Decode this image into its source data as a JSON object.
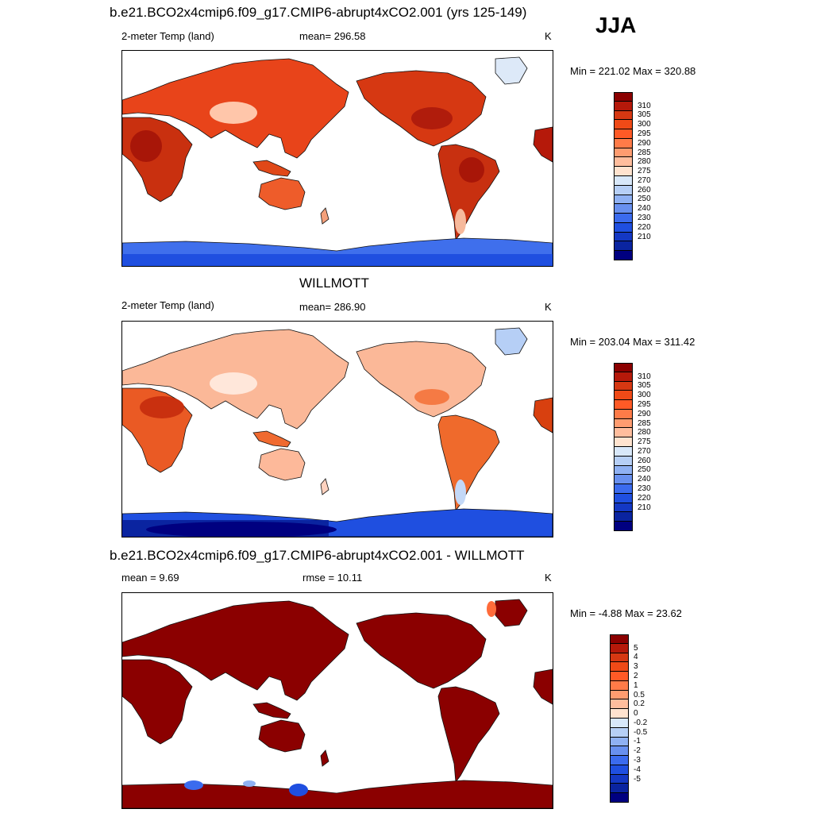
{
  "season": "JJA",
  "panels": [
    {
      "id": "model",
      "title": "b.e21.BCO2x4cmip6.f09_g17.CMIP6-abrupt4xCO2.001 (yrs 125-149)",
      "left_label": "2-meter Temp (land)",
      "center_label": "mean= 296.58",
      "units": "K",
      "minmax": "Min = 221.02 Max = 320.88",
      "colorbar": {
        "colors": [
          "#8b0000",
          "#b5190a",
          "#d63812",
          "#ef4a17",
          "#ff5a26",
          "#ff7b48",
          "#ff9c70",
          "#ffbd9d",
          "#ffe3cf",
          "#d8e8fa",
          "#b6cff6",
          "#8fb1f3",
          "#6890ef",
          "#3b6bee",
          "#1f4fe0",
          "#1438c4",
          "#0a24a0",
          "#000080"
        ],
        "ticks": [
          "310",
          "305",
          "300",
          "295",
          "290",
          "285",
          "280",
          "275",
          "270",
          "260",
          "250",
          "240",
          "230",
          "220",
          "210"
        ]
      }
    },
    {
      "id": "obs",
      "title": "WILLMOTT",
      "left_label": "2-meter Temp (land)",
      "center_label": "mean= 286.90",
      "units": "K",
      "minmax": "Min = 203.04 Max = 311.42",
      "colorbar": {
        "colors": [
          "#8b0000",
          "#b5190a",
          "#d63812",
          "#ef4a17",
          "#ff5a26",
          "#ff7b48",
          "#ff9c70",
          "#ffbd9d",
          "#ffe3cf",
          "#d8e8fa",
          "#b6cff6",
          "#8fb1f3",
          "#6890ef",
          "#3b6bee",
          "#1f4fe0",
          "#1438c4",
          "#0a24a0",
          "#000080"
        ],
        "ticks": [
          "310",
          "305",
          "300",
          "295",
          "290",
          "285",
          "280",
          "275",
          "270",
          "260",
          "250",
          "240",
          "230",
          "220",
          "210"
        ]
      }
    },
    {
      "id": "diff",
      "title": "b.e21.BCO2x4cmip6.f09_g17.CMIP6-abrupt4xCO2.001 - WILLMOTT",
      "left_label": "mean =   9.69",
      "center_label": "rmse =  10.11",
      "units": "K",
      "minmax": "Min =  -4.88 Max =  23.62",
      "colorbar": {
        "colors": [
          "#8b0000",
          "#b5190a",
          "#d63812",
          "#ef4a17",
          "#ff5a26",
          "#ff7b48",
          "#ff9c70",
          "#ffbd9d",
          "#ffe3cf",
          "#d8e8fa",
          "#b6cff6",
          "#8fb1f3",
          "#6890ef",
          "#3b6bee",
          "#1f4fe0",
          "#1438c4",
          "#0a24a0",
          "#000080"
        ],
        "ticks": [
          "5",
          "4",
          "3",
          "2",
          "1",
          "0.5",
          "0.2",
          "0",
          "-0.2",
          "-0.5",
          "-1",
          "-2",
          "-3",
          "-4",
          "-5"
        ]
      }
    }
  ]
}
